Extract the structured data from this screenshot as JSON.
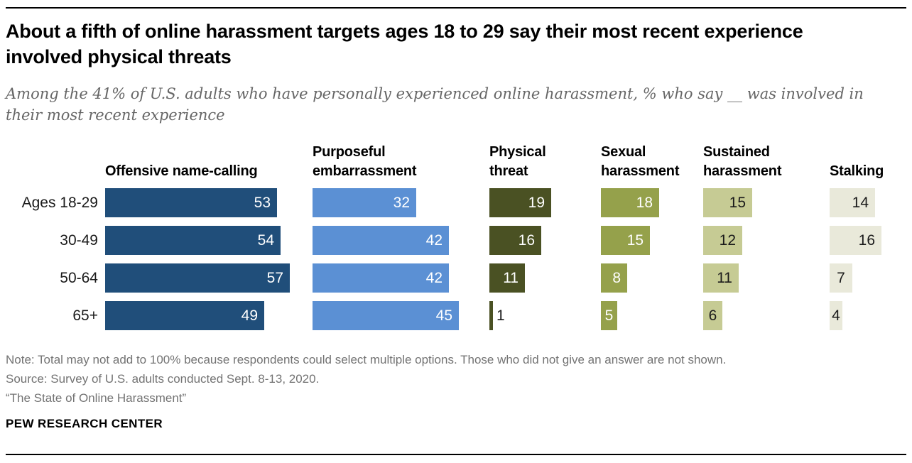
{
  "header": {
    "title": "About a fifth of online harassment targets ages 18 to 29 say their most recent experience involved physical threats",
    "subtitle": "Among the 41% of U.S. adults who have personally experienced online harassment, % who say __ was involved in their most recent experience"
  },
  "chart_data": {
    "type": "bar",
    "orientation": "horizontal",
    "title": "About a fifth of online harassment targets ages 18 to 29 say their most recent experience involved physical threats",
    "subtitle": "Among the 41% of U.S. adults who have personally experienced online harassment, % who say __ was involved in their most recent experience",
    "categories": [
      "Ages 18-29",
      "30-49",
      "50-64",
      "65+"
    ],
    "series": [
      {
        "name": "Offensive name-calling",
        "values": [
          53,
          54,
          57,
          49
        ],
        "color": "#204E7A",
        "label_color": "#FFFFFF"
      },
      {
        "name": "Purposeful embarrassment",
        "values": [
          32,
          42,
          42,
          45
        ],
        "color": "#5B90D4",
        "label_color": "#FFFFFF"
      },
      {
        "name": "Physical threat",
        "values": [
          19,
          16,
          11,
          1
        ],
        "color": "#4A5123",
        "label_color": "#FFFFFF"
      },
      {
        "name": "Sexual harassment",
        "values": [
          18,
          15,
          8,
          5
        ],
        "color": "#95A14B",
        "label_color": "#FFFFFF"
      },
      {
        "name": "Sustained harassment",
        "values": [
          15,
          12,
          11,
          6
        ],
        "color": "#C6CB94",
        "label_color": "#1A1A1A"
      },
      {
        "name": "Stalking",
        "values": [
          14,
          16,
          7,
          4
        ],
        "color": "#E9E9DA",
        "label_color": "#1A1A1A"
      }
    ],
    "xlim": [
      0,
      60
    ],
    "grid": false,
    "legend_position": "column-headers",
    "value_labels": "inside-end"
  },
  "footer": {
    "note": "Note: Total may not add to 100% because respondents could select multiple options. Those who did not give an answer are not shown.",
    "source": "Source: Survey of U.S. adults conducted Sept. 8-13, 2020.",
    "report": "“The State of Online Harassment”",
    "brand": "PEW RESEARCH CENTER"
  }
}
